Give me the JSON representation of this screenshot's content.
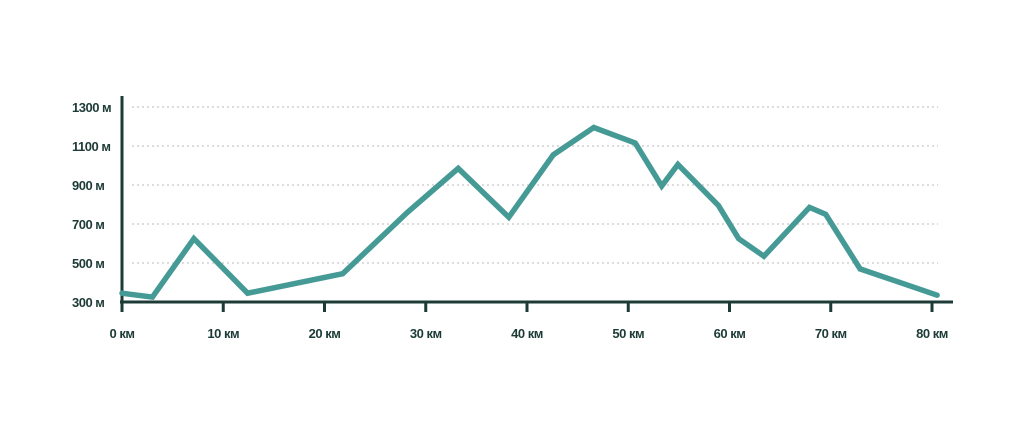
{
  "chart_data": {
    "type": "line",
    "title": "",
    "xlabel": "",
    "ylabel": "",
    "x_ticks": [
      {
        "value": 0,
        "label": "0 км"
      },
      {
        "value": 10,
        "label": "10 км"
      },
      {
        "value": 20,
        "label": "20 км"
      },
      {
        "value": 30,
        "label": "30 км"
      },
      {
        "value": 40,
        "label": "40 км"
      },
      {
        "value": 50,
        "label": "50 км"
      },
      {
        "value": 60,
        "label": "60 км"
      },
      {
        "value": 70,
        "label": "70 км"
      },
      {
        "value": 80,
        "label": "80 км"
      }
    ],
    "y_ticks": [
      {
        "value": 300,
        "label": "300 м"
      },
      {
        "value": 500,
        "label": "500 м"
      },
      {
        "value": 700,
        "label": "700 м"
      },
      {
        "value": 900,
        "label": "900 м"
      },
      {
        "value": 1100,
        "label": "1100 м"
      },
      {
        "value": 1300,
        "label": "1300 м"
      }
    ],
    "xlim": [
      0,
      82
    ],
    "ylim": [
      280,
      1320
    ],
    "grid": true,
    "series": [
      {
        "color": "#459a96",
        "points": [
          {
            "x": 0,
            "y": 345
          },
          {
            "x": 3,
            "y": 325
          },
          {
            "x": 7.1,
            "y": 625
          },
          {
            "x": 12.4,
            "y": 345
          },
          {
            "x": 21.8,
            "y": 445
          },
          {
            "x": 28.2,
            "y": 760
          },
          {
            "x": 33.2,
            "y": 985
          },
          {
            "x": 38.2,
            "y": 735
          },
          {
            "x": 42.6,
            "y": 1055
          },
          {
            "x": 46.6,
            "y": 1195
          },
          {
            "x": 50.7,
            "y": 1115
          },
          {
            "x": 53.3,
            "y": 895
          },
          {
            "x": 54.9,
            "y": 1005
          },
          {
            "x": 58.9,
            "y": 795
          },
          {
            "x": 60.9,
            "y": 625
          },
          {
            "x": 63.4,
            "y": 535
          },
          {
            "x": 67.9,
            "y": 785
          },
          {
            "x": 69.5,
            "y": 750
          },
          {
            "x": 72.9,
            "y": 470
          },
          {
            "x": 80.5,
            "y": 335
          }
        ]
      }
    ],
    "colors": {
      "line": "#459a96",
      "axis": "#1d3b36",
      "grid": "#c8c8c8",
      "text": "#1d3b36"
    }
  }
}
